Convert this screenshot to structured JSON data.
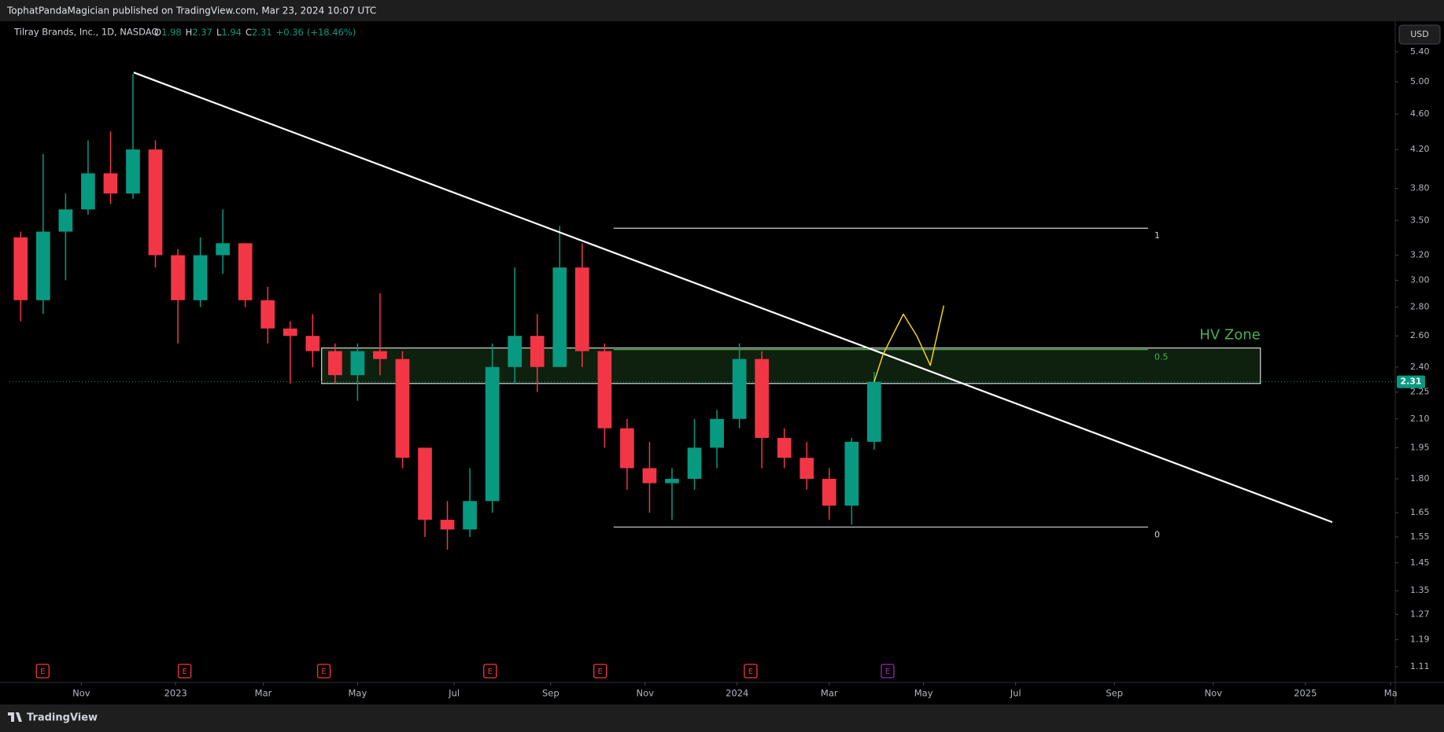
{
  "published": "TophatPandaMagician published on TradingView.com, Mar 23, 2024 10:07 UTC",
  "brand": "TradingView",
  "chart_data": {
    "type": "candlestick",
    "title": "Tilray Brands, Inc., 1D, NASDAQ",
    "currency": "USD",
    "ohlc_letters": [
      "O",
      "H",
      "L",
      "C"
    ],
    "change": {
      "value": 0.36,
      "label": "+0.36"
    },
    "change_pct": {
      "value": 18.46,
      "label": "(+18.46%)"
    },
    "log_scale": true,
    "up_color": "#089981",
    "down_color": "#f23645",
    "open": [
      3.35,
      2.85,
      3.4,
      3.6,
      3.95,
      3.75,
      4.2,
      3.2,
      2.85,
      3.2,
      3.3,
      2.85,
      2.65,
      2.6,
      2.5,
      2.35,
      2.5,
      2.45,
      1.95,
      1.62,
      1.58,
      1.7,
      2.4,
      2.6,
      2.4,
      3.1,
      2.5,
      2.05,
      1.85,
      1.78,
      1.8,
      1.95,
      2.1,
      2.45,
      2.0,
      1.9,
      1.8,
      1.68,
      1.98
    ],
    "high": [
      3.4,
      4.15,
      3.75,
      4.3,
      4.4,
      5.1,
      4.3,
      3.25,
      3.35,
      3.6,
      3.3,
      2.95,
      2.7,
      2.75,
      2.55,
      2.55,
      2.9,
      2.5,
      1.95,
      1.7,
      1.85,
      2.55,
      3.1,
      2.75,
      3.45,
      3.3,
      2.55,
      2.1,
      1.98,
      1.85,
      2.1,
      2.15,
      2.55,
      2.5,
      2.05,
      1.98,
      1.85,
      2.0,
      2.37
    ],
    "low": [
      2.7,
      2.75,
      3.0,
      3.55,
      3.65,
      3.7,
      3.1,
      2.55,
      2.8,
      3.05,
      2.8,
      2.55,
      2.3,
      2.4,
      2.3,
      2.2,
      2.35,
      1.85,
      1.55,
      1.5,
      1.55,
      1.65,
      2.3,
      2.25,
      2.4,
      2.4,
      1.95,
      1.75,
      1.65,
      1.62,
      1.75,
      1.85,
      2.05,
      1.85,
      1.85,
      1.75,
      1.62,
      1.6,
      1.94
    ],
    "close": [
      2.85,
      3.4,
      3.6,
      3.95,
      3.75,
      4.2,
      3.2,
      2.85,
      3.2,
      3.3,
      2.85,
      2.65,
      2.6,
      2.5,
      2.35,
      2.5,
      2.45,
      1.9,
      1.62,
      1.58,
      1.7,
      2.4,
      2.6,
      2.4,
      3.1,
      2.5,
      2.05,
      1.85,
      1.78,
      1.8,
      1.95,
      2.1,
      2.45,
      2.0,
      1.9,
      1.8,
      1.68,
      1.98,
      2.31
    ],
    "xlim": [
      -0.5,
      61.2
    ],
    "xticks": [
      {
        "value": 2.7,
        "label": "Nov"
      },
      {
        "value": 6.9,
        "label": "2023"
      },
      {
        "value": 10.8,
        "label": "Mar"
      },
      {
        "value": 15.0,
        "label": "May"
      },
      {
        "value": 19.3,
        "label": "Jul"
      },
      {
        "value": 23.6,
        "label": "Sep"
      },
      {
        "value": 27.8,
        "label": "Nov"
      },
      {
        "value": 31.9,
        "label": "2024"
      },
      {
        "value": 36.0,
        "label": "Mar"
      },
      {
        "value": 40.2,
        "label": "May"
      },
      {
        "value": 44.3,
        "label": "Jul"
      },
      {
        "value": 48.7,
        "label": "Sep"
      },
      {
        "value": 53.1,
        "label": "Nov"
      },
      {
        "value": 57.2,
        "label": "2025"
      },
      {
        "value": 61.0,
        "label": "Ma"
      }
    ],
    "ylim": [
      1.066,
      5.83
    ],
    "yticks": [
      {
        "value": 5.4,
        "label": "5.40"
      },
      {
        "value": 5,
        "label": "5.00"
      },
      {
        "value": 4.6,
        "label": "4.60"
      },
      {
        "value": 4.2,
        "label": "4.20"
      },
      {
        "value": 3.8,
        "label": "3.80"
      },
      {
        "value": 3.5,
        "label": "3.50"
      },
      {
        "value": 3.2,
        "label": "3.20"
      },
      {
        "value": 3,
        "label": "3.00"
      },
      {
        "value": 2.8,
        "label": "2.80"
      },
      {
        "value": 2.6,
        "label": "2.60"
      },
      {
        "value": 2.4,
        "label": "2.40"
      },
      2.25,
      {
        "value": 2.1,
        "label": "2.10"
      },
      1.95,
      {
        "value": 1.8,
        "label": "1.80"
      },
      1.65,
      1.55,
      1.45,
      1.35,
      1.27,
      1.19,
      1.11
    ],
    "trendline": {
      "x": [
        5.03,
        58.4
      ],
      "y": [
        5.12,
        1.61
      ],
      "color": "#ffffff"
    },
    "fib": {
      "x": [
        26.4,
        50.2
      ],
      "color": "#d1d4dc",
      "levels": [
        {
          "value": 1,
          "price": 3.43
        },
        {
          "value": 0.5,
          "price": 2.51,
          "color": "#4caf50"
        },
        {
          "value": 0,
          "price": 1.59
        }
      ]
    },
    "zone": {
      "label": "HV Zone",
      "x": [
        13.4,
        55.2
      ],
      "y": [
        2.3,
        2.52
      ],
      "color": "#4caf50"
    },
    "projection": {
      "x": [
        38.0,
        38.4,
        39.3,
        39.9,
        40.5,
        41.1
      ],
      "y": [
        2.31,
        2.48,
        2.75,
        2.6,
        2.41,
        2.81
      ],
      "color": "#f5d312"
    },
    "earnings": {
      "label": "E",
      "x": [
        0.98,
        7.3,
        13.5,
        20.9,
        25.8,
        32.5,
        38.6
      ],
      "color": "#f23645",
      "upcoming_color": "#9c27b0"
    }
  }
}
